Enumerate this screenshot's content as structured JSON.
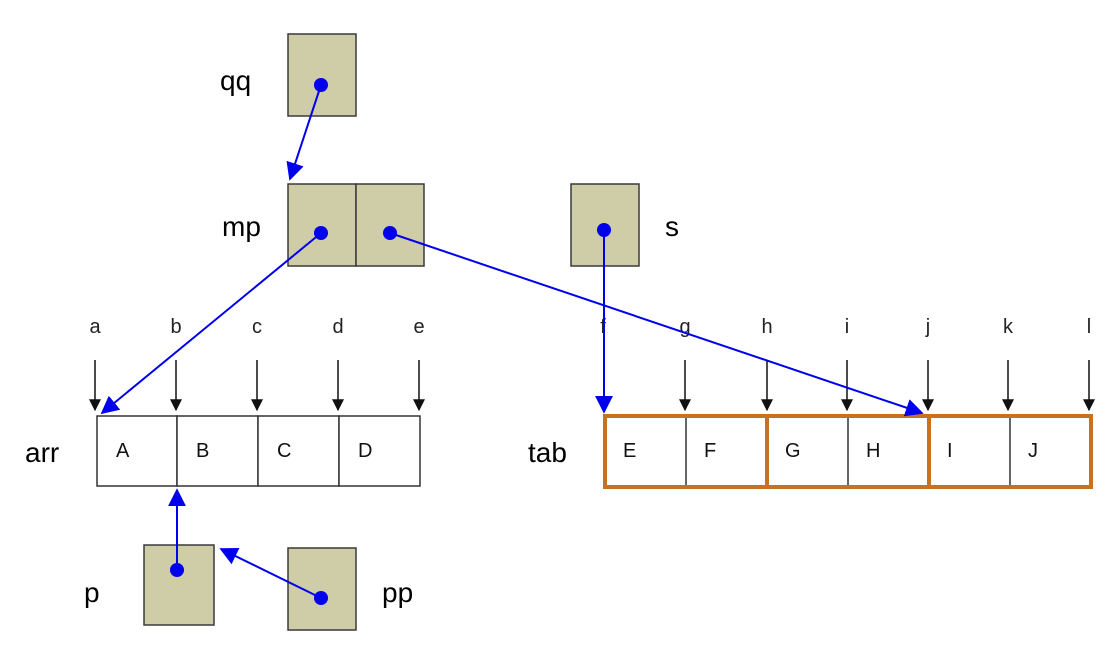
{
  "variables": {
    "qq": "qq",
    "mp": "mp",
    "s": "s",
    "arr": "arr",
    "tab": "tab",
    "p": "p",
    "pp": "pp"
  },
  "addresses": [
    "a",
    "b",
    "c",
    "d",
    "e",
    "f",
    "g",
    "h",
    "i",
    "j",
    "k",
    "l"
  ],
  "arr_cells": [
    "A",
    "B",
    "C",
    "D"
  ],
  "tab_cells": [
    "E",
    "F",
    "G",
    "H",
    "I",
    "J"
  ],
  "colors": {
    "pointer": "#0000ee",
    "pointer_box": "#cfcca8",
    "tab_group_border": "#c8711f"
  }
}
